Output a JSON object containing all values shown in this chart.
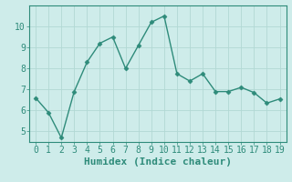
{
  "x": [
    0,
    1,
    2,
    3,
    4,
    5,
    6,
    7,
    8,
    9,
    10,
    11,
    12,
    13,
    14,
    15,
    16,
    17,
    18,
    19
  ],
  "y": [
    6.6,
    5.9,
    4.7,
    6.9,
    8.3,
    9.2,
    9.5,
    8.0,
    9.1,
    10.2,
    10.5,
    7.75,
    7.4,
    7.75,
    6.9,
    6.9,
    7.1,
    6.85,
    6.35,
    6.55
  ],
  "line_color": "#2e8b7a",
  "marker": "D",
  "marker_size": 2.5,
  "line_width": 1.0,
  "xlabel": "Humidex (Indice chaleur)",
  "xlim": [
    -0.5,
    19.5
  ],
  "ylim": [
    4.5,
    11.0
  ],
  "yticks": [
    5,
    6,
    7,
    8,
    9,
    10
  ],
  "xticks": [
    0,
    1,
    2,
    3,
    4,
    5,
    6,
    7,
    8,
    9,
    10,
    11,
    12,
    13,
    14,
    15,
    16,
    17,
    18,
    19
  ],
  "bg_color": "#ceecea",
  "grid_color": "#b2d8d4",
  "font_color": "#2e8b7a",
  "xlabel_fontsize": 8,
  "tick_fontsize": 7
}
